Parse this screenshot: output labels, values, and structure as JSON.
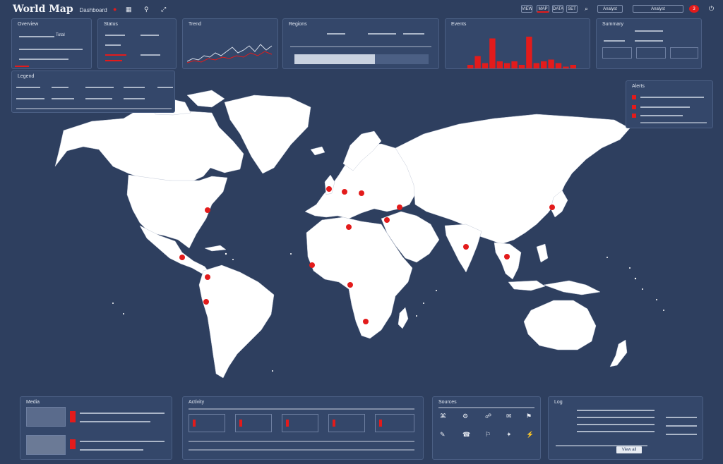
{
  "app": {
    "title": "World Map Dashboard",
    "accent_color": "#e31b1b",
    "background_color": "#2e3f5f",
    "land_color": "#ffffff"
  },
  "topbar": {
    "title": "World Map",
    "subtitle": "Dashboard",
    "tabs": [
      "VIEW",
      "MAP",
      "DATA",
      "SET"
    ],
    "active_tab": 1,
    "actions": [
      "search-icon",
      "bell-icon",
      "settings-icon",
      "share-icon",
      "power-icon"
    ],
    "user_label": "Analyst",
    "notification_count": "3"
  },
  "panels": {
    "overview": {
      "title": "Overview",
      "sublabel": "Total"
    },
    "status": {
      "title": "Status"
    },
    "trend": {
      "title": "Trend"
    },
    "regions": {
      "title": "Regions",
      "progress": 0.6
    },
    "histogram": {
      "title": "Events",
      "values": [
        0.1,
        0.35,
        0.15,
        0.85,
        0.2,
        0.15,
        0.2,
        0.1,
        0.9,
        0.15,
        0.2,
        0.25,
        0.15,
        0.05,
        0.1
      ]
    },
    "summary": {
      "title": "Summary"
    },
    "legend": {
      "title": "Legend"
    },
    "alerts": {
      "title": "Alerts"
    },
    "bottom_left": {
      "title": "Media"
    },
    "bottom_mid": {
      "title": "Activity"
    },
    "bottom_grid": {
      "title": "Sources"
    },
    "bottom_right": {
      "title": "Log",
      "button_label": "View all"
    }
  },
  "hotspots": [
    {
      "name": "usa-east"
    },
    {
      "name": "mexico"
    },
    {
      "name": "colombia"
    },
    {
      "name": "peru"
    },
    {
      "name": "uk"
    },
    {
      "name": "europe-west"
    },
    {
      "name": "europe-central"
    },
    {
      "name": "turkey"
    },
    {
      "name": "iran"
    },
    {
      "name": "west-africa"
    },
    {
      "name": "central-africa"
    },
    {
      "name": "south-africa"
    },
    {
      "name": "india"
    },
    {
      "name": "thailand"
    },
    {
      "name": "japan"
    },
    {
      "name": "libya"
    }
  ]
}
